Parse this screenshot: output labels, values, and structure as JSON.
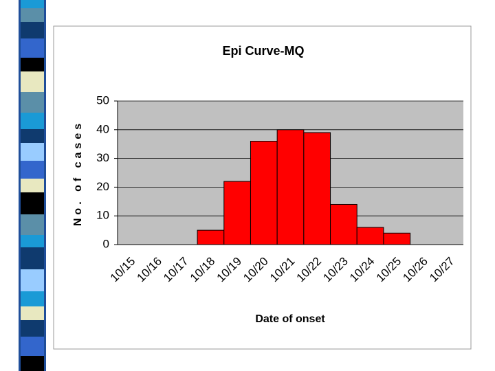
{
  "chart_data": {
    "type": "bar",
    "title": "Epi Curve-MQ",
    "x_label": "Date of onset",
    "y_label": "No. of cases",
    "categories": [
      "10/15",
      "10/16",
      "10/17",
      "10/18",
      "10/19",
      "10/20",
      "10/21",
      "10/22",
      "10/23",
      "10/24",
      "10/25",
      "10/26",
      "10/27"
    ],
    "values": [
      0,
      0,
      0,
      5,
      22,
      36,
      40,
      39,
      14,
      6,
      4,
      0,
      0
    ],
    "color": "#ff0000",
    "ylim": [
      0,
      50
    ],
    "yticks": [
      0,
      10,
      20,
      30,
      40,
      50
    ],
    "grid": true
  }
}
